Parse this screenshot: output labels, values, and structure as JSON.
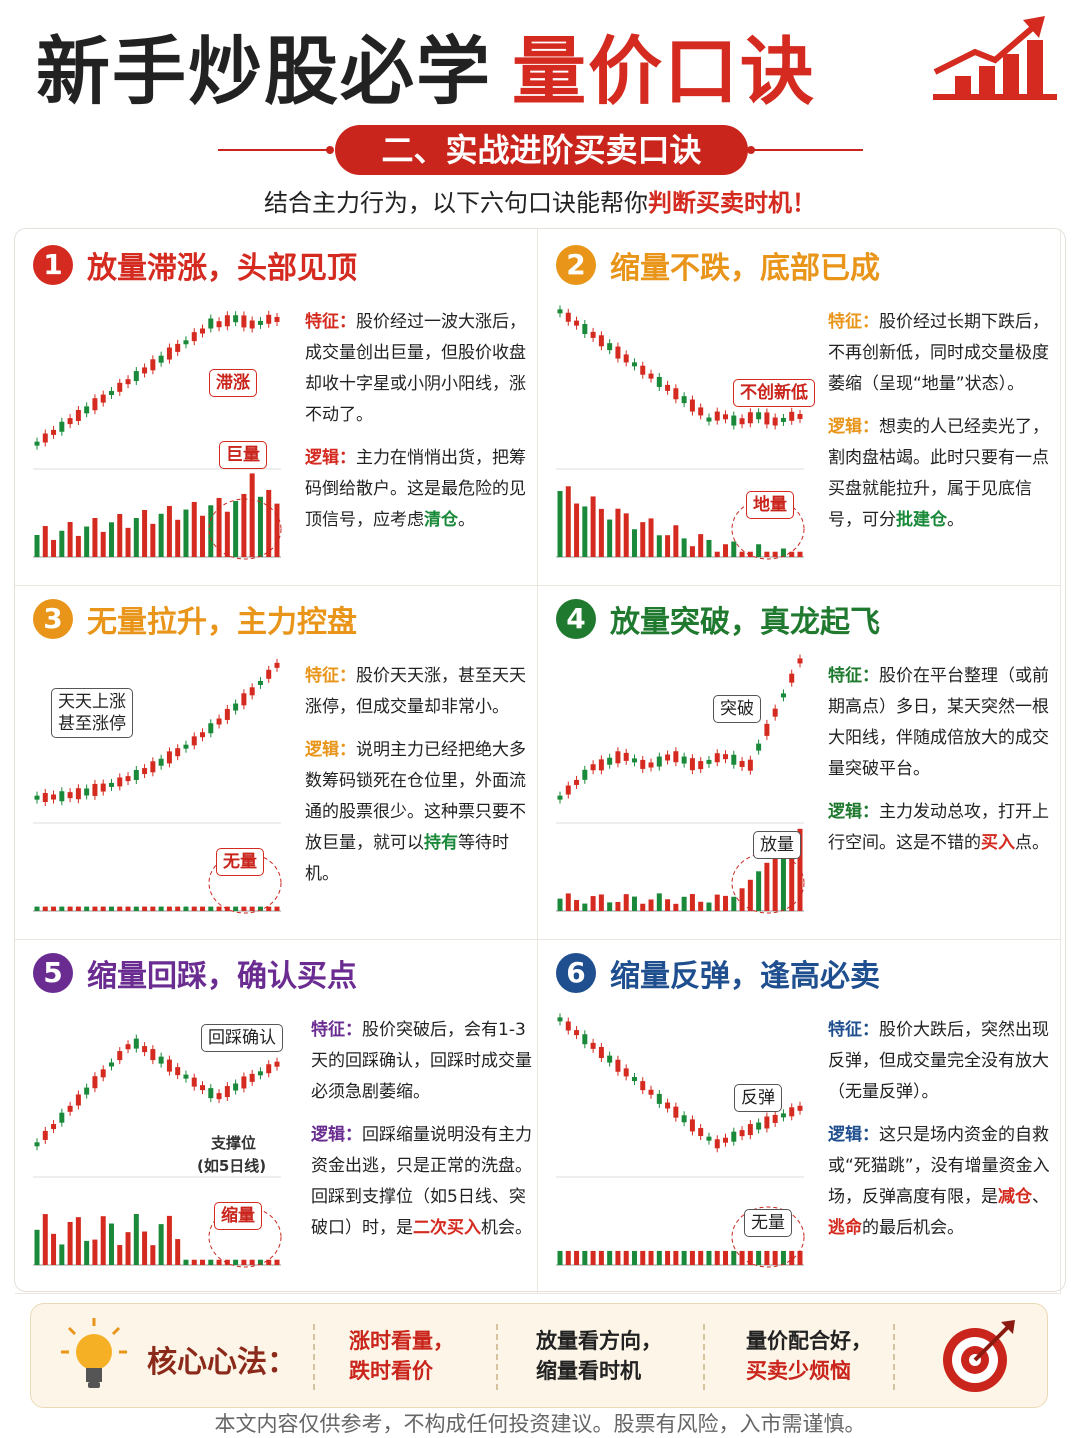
{
  "header": {
    "title": "新手炒股必学",
    "title_highlight": "量价口诀"
  },
  "section": {
    "badge": "二、实战进阶买卖口诀",
    "intro": "结合主力行为，以下六句口诀能帮你",
    "intro_highlight": "判断买卖时机！"
  },
  "cards": [
    {
      "number": "1",
      "title": "放量滞涨，头部见顶",
      "color": "#d42a1f",
      "highlight_color": "#1a8a3a",
      "chart_labels": [
        "滞涨",
        "巨量"
      ],
      "feature_label": "特征：",
      "feature": "股价经过一波大涨后，成交量创出巨量，但股价收盘却收十字星或小阴小阳线，涨不动了。",
      "logic_label": "逻辑：",
      "logic": [
        "主力在悄悄出货，把筹码倒给散户。这是最危险的见顶信号，应考虑",
        "清仓",
        "。"
      ]
    },
    {
      "number": "2",
      "title": "缩量不跌，底部已成",
      "color": "#e8951a",
      "highlight_color": "#1a8a3a",
      "chart_labels": [
        "不创新低",
        "地量"
      ],
      "feature_label": "特征：",
      "feature": "股价经过长期下跌后，不再创新低，同时成交量极度萎缩（呈现“地量”状态）。",
      "logic_label": "逻辑：",
      "logic": [
        "想卖的人已经卖光了，割肉盘枯竭。此时只要有一点买盘就能拉升，属于见底信号，可分",
        "批建仓",
        "。"
      ]
    },
    {
      "number": "3",
      "title": "无量拉升，主力控盘",
      "color": "#e8951a",
      "highlight_color": "#1a8a3a",
      "chart_labels": [
        "天天上涨",
        "甚至涨停",
        "无量"
      ],
      "feature_label": "特征：",
      "feature": "股价天天涨，甚至天天涨停，但成交量却非常小。",
      "logic_label": "逻辑：",
      "logic": [
        "说明主力已经把绝大多数筹码锁死在仓位里，外面流通的股票很少。这种票只要不放巨量，就可以",
        "持有",
        "等待时机。"
      ]
    },
    {
      "number": "4",
      "title": "放量突破，真龙起飞",
      "color": "#1f7a2f",
      "highlight_color": "#d42a1f",
      "chart_labels": [
        "突破",
        "放量"
      ],
      "feature_label": "特征：",
      "feature": "股价在平台整理（或前期高点）多日，某天突然一根大阳线，伴随成倍放大的成交量突破平台。",
      "logic_label": "逻辑：",
      "logic": [
        "主力发动总攻，打开上行空间。这是不错的",
        "买入",
        "点。"
      ]
    },
    {
      "number": "5",
      "title": "缩量回踩，确认买点",
      "color": "#6a2c91",
      "highlight_color": "#d42a1f",
      "chart_labels": [
        "回踩确认",
        "支撑位",
        "(如5日线)",
        "缩量"
      ],
      "feature_label": "特征：",
      "feature": "股价突破后，会有1-3天的回踩确认，回踩时成交量必须急剧萎缩。",
      "logic_label": "逻辑：",
      "logic": [
        "回踩缩量说明没有主力资金出逃，只是正常的洗盘。回踩到支撑位（如5日线、突破口）时，是",
        "二次买入",
        "机会。"
      ]
    },
    {
      "number": "6",
      "title": "缩量反弹，逢高必卖",
      "color": "#1f4f8f",
      "highlight_color": "#d42a1f",
      "chart_labels": [
        "反弹",
        "无量"
      ],
      "feature_label": "特征：",
      "feature": "股价大跌后，突然出现反弹，但成交量完全没有放大（无量反弹）。",
      "logic_label": "逻辑：",
      "logic": [
        "这只是场内资金的自救或“死猫跳”，没有增量资金入场，反弹高度有限，是",
        "减仓",
        "、",
        "逃命",
        "的最后机会。"
      ]
    }
  ],
  "footer": {
    "label": "核心心法：",
    "tips": [
      [
        "涨时看量，",
        "跌时看价"
      ],
      [
        "放量看方向，",
        "缩量看时机"
      ],
      [
        "量价配合好，",
        "买卖少烦恼"
      ]
    ],
    "disclaimer": "本文内容仅供参考，不构成任何投资建议。股票有风险，入市需谨慎。"
  }
}
